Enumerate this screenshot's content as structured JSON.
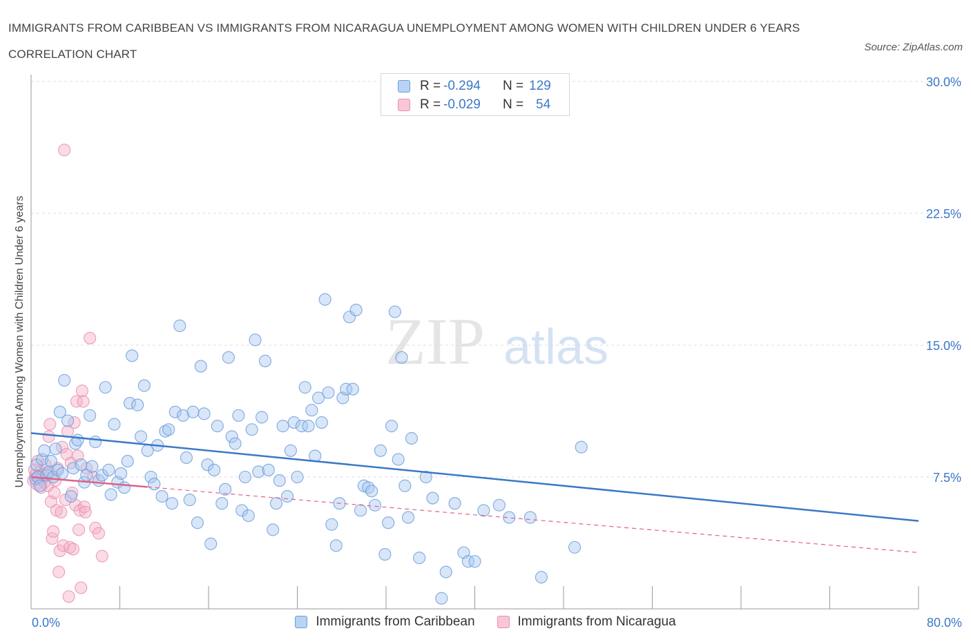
{
  "title": "IMMIGRANTS FROM CARIBBEAN VS IMMIGRANTS FROM NICARAGUA UNEMPLOYMENT AMONG WOMEN WITH CHILDREN UNDER 6 YEARS CORRELATION CHART",
  "source": "Source: ZipAtlas.com",
  "watermark": {
    "zip": "ZIP",
    "atlas": "atlas"
  },
  "colors": {
    "blue": "#3a78c8",
    "blue_fill": "#a8c8f0",
    "pink": "#e0608a",
    "pink_fill": "#f4b0c8",
    "grid": "#dcdcdc"
  },
  "legend": {
    "series1": {
      "r_label": "R =",
      "r_value": "-0.294",
      "n_label": "N =",
      "n_value": "129"
    },
    "series2": {
      "r_label": "R =",
      "r_value": "-0.029",
      "n_label": "N =",
      "n_value": "54"
    }
  },
  "chart_data": {
    "type": "scatter",
    "title": "IMMIGRANTS FROM CARIBBEAN VS IMMIGRANTS FROM NICARAGUA UNEMPLOYMENT AMONG WOMEN WITH CHILDREN UNDER 6 YEARS CORRELATION CHART",
    "xlabel": "",
    "ylabel": "Unemployment Among Women with Children Under 6 years",
    "xlim": [
      0,
      80
    ],
    "ylim": [
      0,
      30
    ],
    "x_tick_labels": [
      "0.0%",
      "80.0%"
    ],
    "y_ticks": [
      7.5,
      15.0,
      22.5,
      30.0
    ],
    "y_tick_labels": [
      "7.5%",
      "15.0%",
      "22.5%",
      "30.0%"
    ],
    "grid": true,
    "legend_position": "top-center",
    "series": [
      {
        "name": "Immigrants from Caribbean",
        "color": "#3a78c8",
        "trend": {
          "x": [
            0,
            80
          ],
          "y": [
            10.0,
            5.0
          ]
        },
        "points": [
          [
            0.4,
            7.4
          ],
          [
            0.5,
            8.2
          ],
          [
            0.6,
            7.5
          ],
          [
            0.8,
            7.0
          ],
          [
            1.0,
            8.5
          ],
          [
            1.2,
            9.0
          ],
          [
            1.4,
            7.6
          ],
          [
            1.6,
            7.8
          ],
          [
            1.8,
            8.4
          ],
          [
            2.0,
            7.5
          ],
          [
            2.2,
            9.1
          ],
          [
            2.4,
            7.9
          ],
          [
            2.6,
            11.2
          ],
          [
            2.8,
            7.7
          ],
          [
            3.0,
            13.0
          ],
          [
            3.3,
            10.7
          ],
          [
            3.6,
            6.4
          ],
          [
            3.8,
            8.0
          ],
          [
            4.0,
            9.4
          ],
          [
            4.2,
            9.6
          ],
          [
            4.5,
            8.2
          ],
          [
            4.8,
            7.2
          ],
          [
            5.0,
            7.6
          ],
          [
            5.3,
            11.0
          ],
          [
            5.5,
            8.1
          ],
          [
            5.8,
            9.5
          ],
          [
            6.1,
            7.3
          ],
          [
            6.4,
            7.6
          ],
          [
            6.7,
            12.6
          ],
          [
            7.0,
            7.9
          ],
          [
            7.2,
            6.5
          ],
          [
            7.5,
            10.5
          ],
          [
            7.8,
            7.2
          ],
          [
            8.1,
            7.7
          ],
          [
            8.4,
            6.9
          ],
          [
            8.7,
            8.4
          ],
          [
            8.9,
            11.7
          ],
          [
            9.1,
            14.4
          ],
          [
            9.6,
            11.6
          ],
          [
            9.9,
            9.8
          ],
          [
            10.2,
            12.7
          ],
          [
            10.5,
            9.0
          ],
          [
            10.8,
            7.5
          ],
          [
            11.1,
            7.1
          ],
          [
            11.4,
            9.3
          ],
          [
            11.8,
            6.4
          ],
          [
            12.1,
            10.1
          ],
          [
            12.4,
            10.2
          ],
          [
            12.7,
            6.0
          ],
          [
            13.0,
            11.2
          ],
          [
            13.4,
            16.1
          ],
          [
            13.7,
            11.0
          ],
          [
            14.0,
            8.6
          ],
          [
            14.3,
            6.2
          ],
          [
            14.6,
            11.2
          ],
          [
            15.0,
            4.9
          ],
          [
            15.3,
            13.8
          ],
          [
            15.6,
            11.1
          ],
          [
            15.9,
            8.2
          ],
          [
            16.2,
            3.7
          ],
          [
            16.5,
            7.9
          ],
          [
            16.8,
            10.4
          ],
          [
            17.2,
            6.0
          ],
          [
            17.5,
            6.8
          ],
          [
            17.8,
            14.3
          ],
          [
            18.1,
            9.8
          ],
          [
            18.4,
            9.4
          ],
          [
            18.7,
            11.0
          ],
          [
            19.0,
            5.6
          ],
          [
            19.3,
            7.5
          ],
          [
            19.6,
            5.3
          ],
          [
            19.9,
            10.2
          ],
          [
            20.2,
            15.3
          ],
          [
            20.5,
            7.8
          ],
          [
            20.8,
            10.9
          ],
          [
            21.1,
            14.1
          ],
          [
            21.4,
            7.9
          ],
          [
            21.8,
            4.5
          ],
          [
            22.1,
            6.0
          ],
          [
            22.4,
            7.3
          ],
          [
            22.7,
            10.4
          ],
          [
            23.1,
            6.4
          ],
          [
            23.4,
            9.0
          ],
          [
            23.7,
            10.6
          ],
          [
            24.0,
            7.5
          ],
          [
            24.4,
            10.4
          ],
          [
            24.7,
            12.6
          ],
          [
            25.0,
            10.4
          ],
          [
            25.3,
            11.3
          ],
          [
            25.6,
            8.7
          ],
          [
            25.9,
            12.0
          ],
          [
            26.2,
            10.6
          ],
          [
            26.5,
            17.6
          ],
          [
            26.8,
            12.3
          ],
          [
            27.1,
            4.8
          ],
          [
            27.5,
            3.6
          ],
          [
            27.8,
            6.0
          ],
          [
            28.1,
            12.0
          ],
          [
            28.4,
            12.5
          ],
          [
            28.7,
            16.6
          ],
          [
            29.0,
            12.5
          ],
          [
            29.3,
            17.0
          ],
          [
            29.7,
            5.6
          ],
          [
            30.0,
            7.0
          ],
          [
            30.4,
            6.9
          ],
          [
            30.7,
            6.7
          ],
          [
            31.0,
            5.9
          ],
          [
            31.5,
            9.0
          ],
          [
            31.9,
            3.1
          ],
          [
            32.2,
            4.9
          ],
          [
            32.5,
            10.4
          ],
          [
            32.8,
            16.9
          ],
          [
            33.1,
            8.5
          ],
          [
            33.4,
            14.3
          ],
          [
            33.7,
            7.0
          ],
          [
            34.0,
            5.2
          ],
          [
            34.3,
            9.7
          ],
          [
            35.0,
            2.9
          ],
          [
            35.6,
            7.5
          ],
          [
            36.2,
            6.3
          ],
          [
            37.0,
            0.6
          ],
          [
            37.4,
            2.1
          ],
          [
            38.2,
            6.0
          ],
          [
            39.0,
            3.2
          ],
          [
            39.4,
            2.7
          ],
          [
            40.0,
            2.7
          ],
          [
            40.8,
            5.6
          ],
          [
            42.2,
            5.9
          ],
          [
            43.1,
            5.2
          ],
          [
            45.0,
            5.2
          ],
          [
            46.0,
            1.8
          ],
          [
            49.0,
            3.5
          ],
          [
            49.6,
            9.2
          ]
        ]
      },
      {
        "name": "Immigrants from Nicaragua",
        "color": "#e0608a",
        "trend": {
          "x": [
            0,
            80
          ],
          "y": [
            7.5,
            3.2
          ]
        },
        "points": [
          [
            0.2,
            7.3
          ],
          [
            0.3,
            7.9
          ],
          [
            0.4,
            7.6
          ],
          [
            0.5,
            7.1
          ],
          [
            0.6,
            8.4
          ],
          [
            0.7,
            7.5
          ],
          [
            0.8,
            7.8
          ],
          [
            0.9,
            6.9
          ],
          [
            1.0,
            7.4
          ],
          [
            1.1,
            7.6
          ],
          [
            1.2,
            7.2
          ],
          [
            1.3,
            8.2
          ],
          [
            1.4,
            7.7
          ],
          [
            1.5,
            7.0
          ],
          [
            1.6,
            9.8
          ],
          [
            1.7,
            10.5
          ],
          [
            1.8,
            6.1
          ],
          [
            1.9,
            4.0
          ],
          [
            2.0,
            4.4
          ],
          [
            2.1,
            6.6
          ],
          [
            2.2,
            7.3
          ],
          [
            2.3,
            5.6
          ],
          [
            2.4,
            8.0
          ],
          [
            2.5,
            2.1
          ],
          [
            2.6,
            3.3
          ],
          [
            2.7,
            5.5
          ],
          [
            2.8,
            9.2
          ],
          [
            2.9,
            3.6
          ],
          [
            3.0,
            26.1
          ],
          [
            3.1,
            6.2
          ],
          [
            3.2,
            8.8
          ],
          [
            3.3,
            10.1
          ],
          [
            3.4,
            0.7
          ],
          [
            3.5,
            3.5
          ],
          [
            3.6,
            8.3
          ],
          [
            3.7,
            6.6
          ],
          [
            3.8,
            3.4
          ],
          [
            3.9,
            10.6
          ],
          [
            4.0,
            5.9
          ],
          [
            4.1,
            11.8
          ],
          [
            4.2,
            8.7
          ],
          [
            4.3,
            4.5
          ],
          [
            4.4,
            5.6
          ],
          [
            4.5,
            1.2
          ],
          [
            4.6,
            12.4
          ],
          [
            4.7,
            11.8
          ],
          [
            4.8,
            5.8
          ],
          [
            4.9,
            5.5
          ],
          [
            5.0,
            8.0
          ],
          [
            5.3,
            15.4
          ],
          [
            5.6,
            7.5
          ],
          [
            5.8,
            4.6
          ],
          [
            6.1,
            4.3
          ],
          [
            6.4,
            3.0
          ]
        ]
      }
    ]
  }
}
